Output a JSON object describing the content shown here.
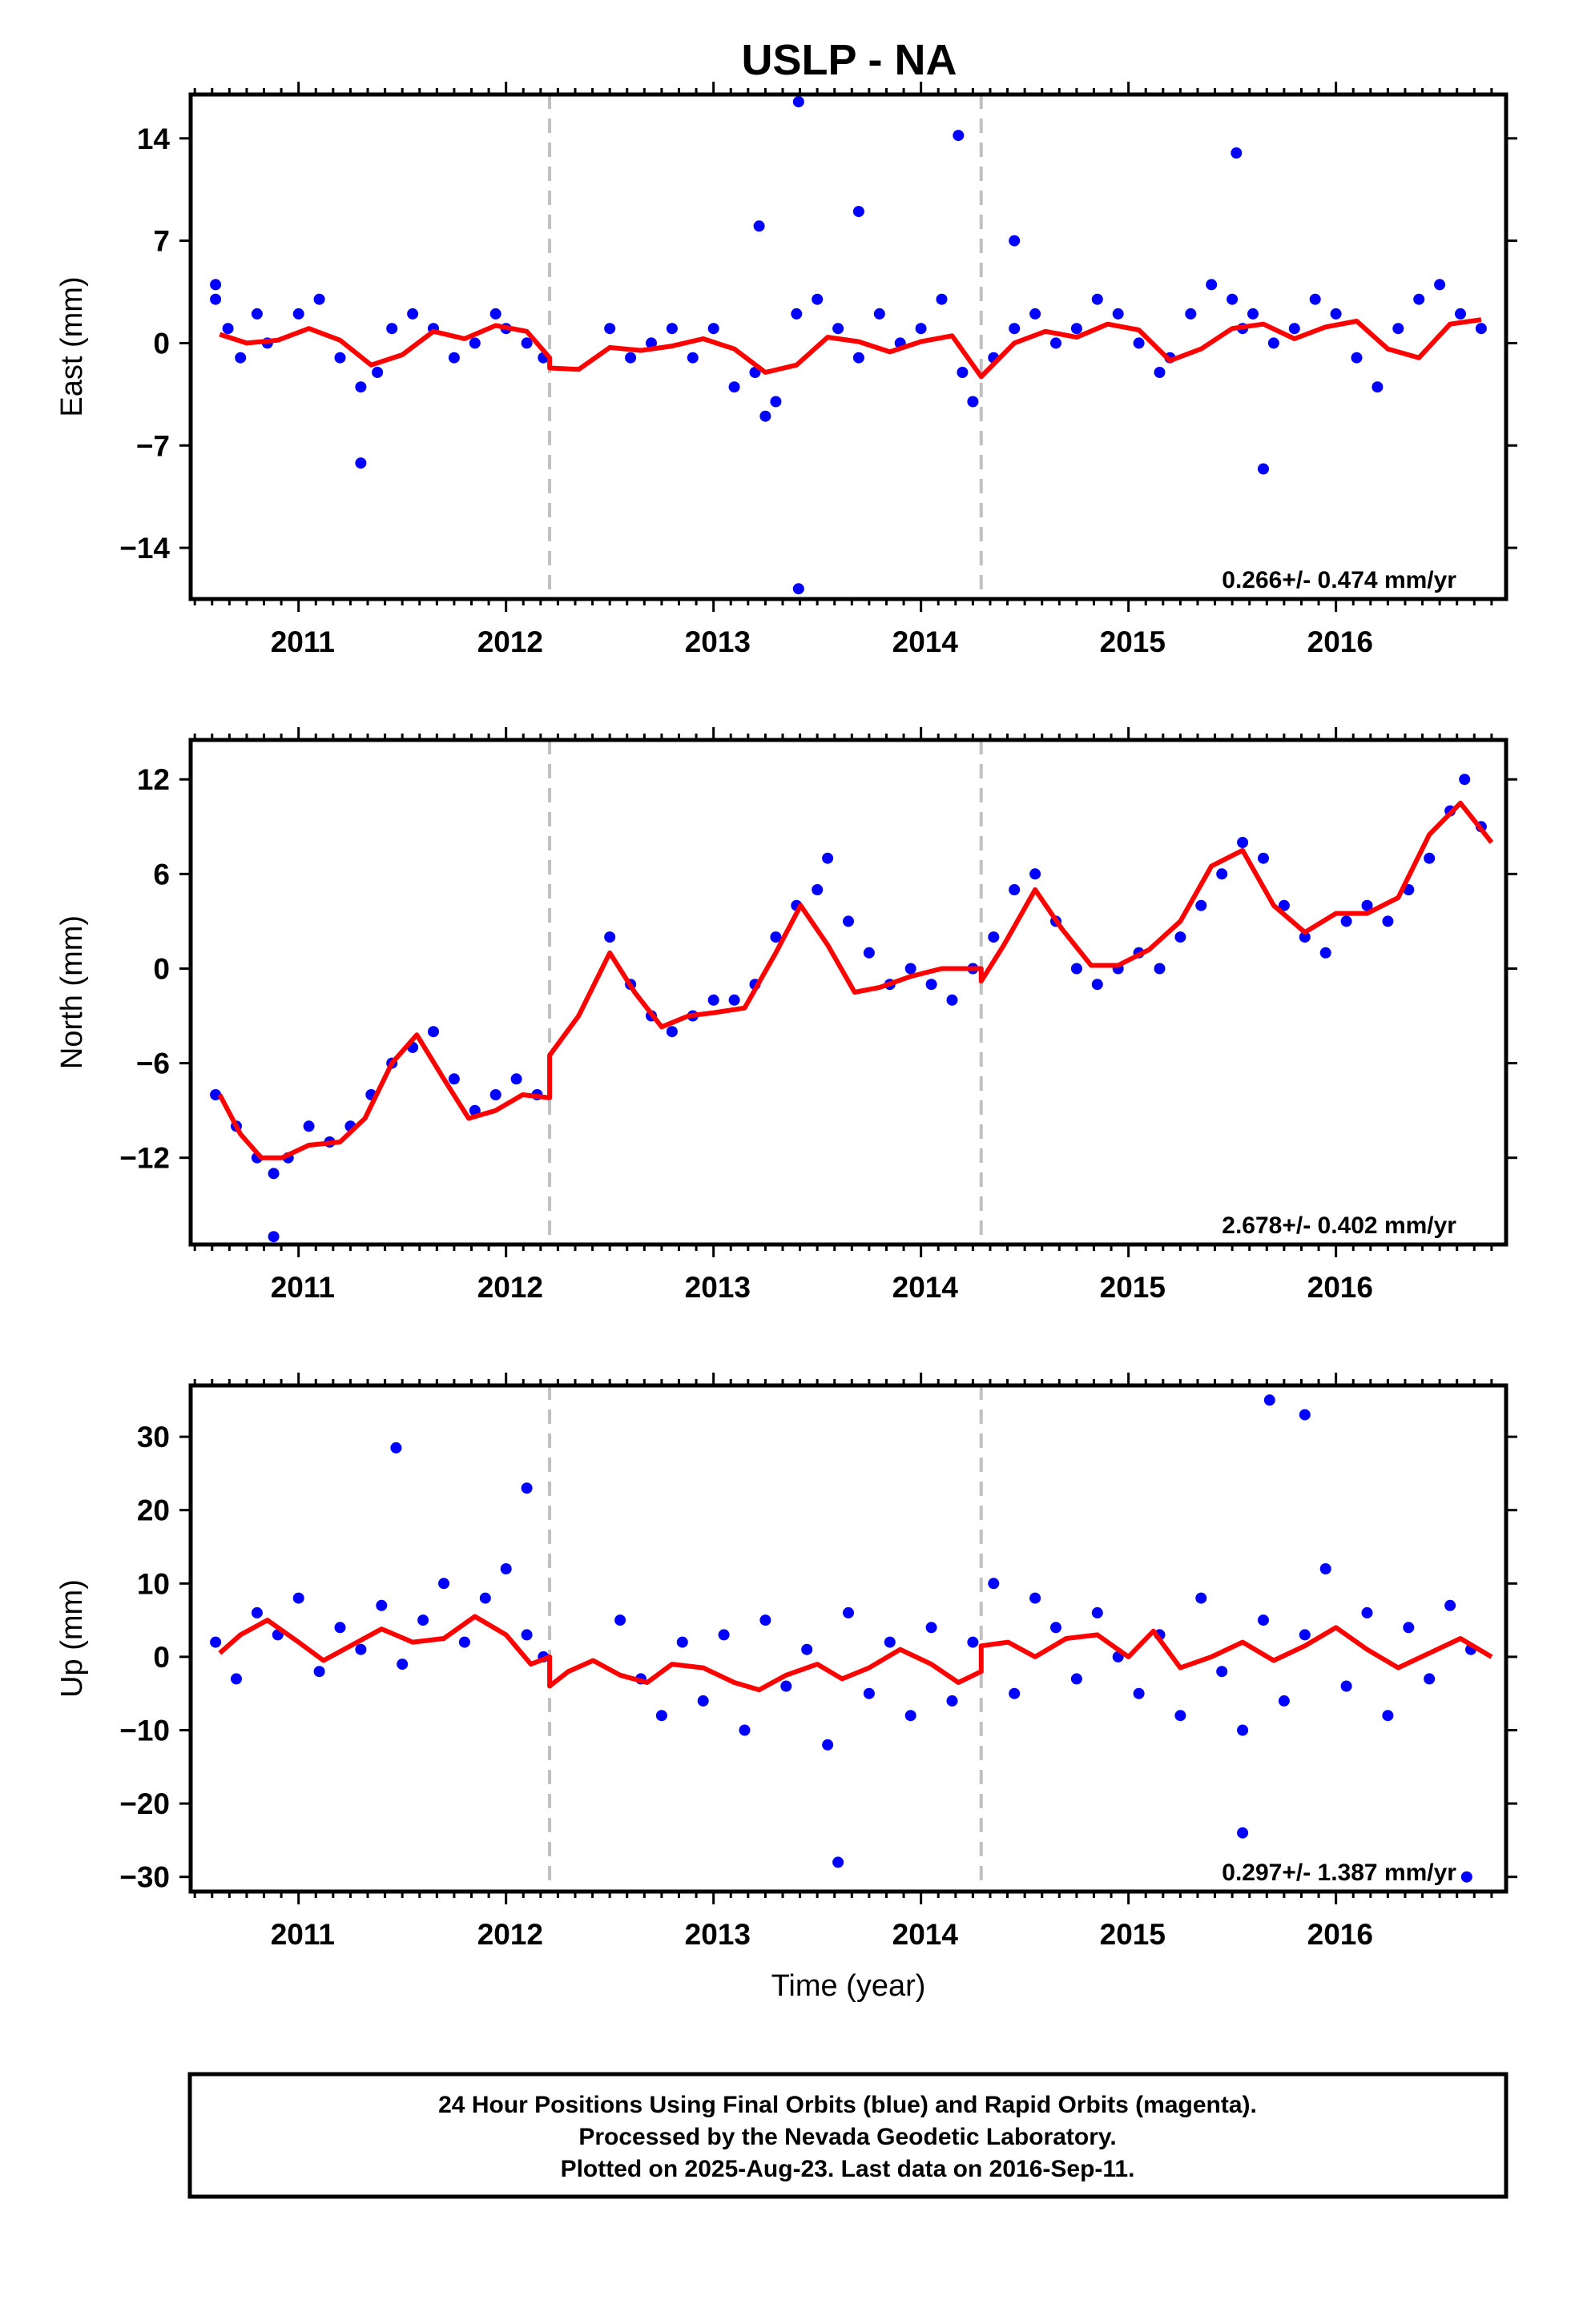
{
  "title": "USLP - NA",
  "colors": {
    "data": "#0000ff",
    "model": "#ff0000",
    "offset": "#c0c0c0",
    "frame": "#000000"
  },
  "footer": {
    "line1": "24 Hour Positions Using Final Orbits (blue) and Rapid Orbits (magenta).",
    "line2": "Processed by the Nevada Geodetic Laboratory.",
    "line3": "Plotted on 2025-Aug-23. Last data on 2016-Sep-11."
  },
  "chart_data": [
    {
      "type": "scatter",
      "id": "east",
      "ylabel": "East (mm)",
      "xlabel": "",
      "xlim": [
        2010.48,
        2016.82
      ],
      "ylim": [
        -17.5,
        17
      ],
      "yticks": [
        14,
        7,
        0,
        -7,
        -14
      ],
      "xticks": [
        2011,
        2012,
        2013,
        2014,
        2015,
        2016
      ],
      "offsets": [
        2012.21,
        2014.29
      ],
      "rate": "0.266+/- 0.474 mm/yr",
      "x": [
        2010.6,
        2010.66,
        2010.72,
        2010.8,
        2010.85,
        2011.0,
        2011.1,
        2011.2,
        2011.3,
        2011.38,
        2011.45,
        2011.55,
        2011.65,
        2011.75,
        2011.85,
        2011.95,
        2012.0,
        2012.1,
        2012.18,
        2012.5,
        2012.6,
        2012.7,
        2012.8,
        2012.9,
        2013.0,
        2013.1,
        2013.2,
        2013.25,
        2013.3,
        2013.4,
        2013.5,
        2013.6,
        2013.7,
        2013.8,
        2013.9,
        2014.0,
        2014.1,
        2014.2,
        2014.25,
        2014.35,
        2014.45,
        2014.55,
        2014.65,
        2014.75,
        2014.85,
        2014.95,
        2015.05,
        2015.15,
        2015.2,
        2015.3,
        2015.4,
        2015.5,
        2015.55,
        2015.6,
        2015.7,
        2015.8,
        2015.9,
        2016.0,
        2016.1,
        2016.2,
        2016.3,
        2016.4,
        2016.5,
        2016.6,
        2016.7,
        2013.41,
        2014.18,
        2015.52,
        2011.3,
        2015.65,
        2013.41,
        2013.22,
        2013.7,
        2014.45,
        2010.6
      ],
      "y": [
        3,
        1,
        -1,
        2,
        0,
        2,
        3,
        -1,
        -3,
        -2,
        1,
        2,
        1,
        -1,
        0,
        2,
        1,
        0,
        -1,
        1,
        -1,
        0,
        1,
        -1,
        1,
        -3,
        -2,
        -5,
        -4,
        2,
        3,
        1,
        -1,
        2,
        0,
        1,
        3,
        -2,
        -4,
        -1,
        1,
        2,
        0,
        1,
        3,
        2,
        0,
        -2,
        -1,
        2,
        4,
        3,
        1,
        2,
        0,
        1,
        3,
        2,
        -1,
        -3,
        1,
        3,
        4,
        2,
        1,
        16.5,
        14.2,
        13,
        -8.2,
        -8.6,
        -16.8,
        8,
        9,
        7,
        4
      ],
      "model_x": [
        2010.62,
        2010.75,
        2010.9,
        2011.05,
        2011.2,
        2011.35,
        2011.5,
        2011.65,
        2011.8,
        2011.95,
        2012.1,
        2012.21,
        2012.21,
        2012.35,
        2012.5,
        2012.65,
        2012.8,
        2012.95,
        2013.1,
        2013.25,
        2013.4,
        2013.55,
        2013.7,
        2013.85,
        2014.0,
        2014.15,
        2014.29,
        2014.29,
        2014.45,
        2014.6,
        2014.75,
        2014.9,
        2015.05,
        2015.2,
        2015.35,
        2015.5,
        2015.65,
        2015.8,
        2015.95,
        2016.1,
        2016.25,
        2016.4,
        2016.55,
        2016.7
      ],
      "model_y": [
        0.6,
        0.0,
        0.2,
        1.0,
        0.2,
        -1.5,
        -0.8,
        0.8,
        0.3,
        1.2,
        0.8,
        -1.0,
        -1.7,
        -1.8,
        -0.3,
        -0.5,
        -0.2,
        0.3,
        -0.4,
        -2.0,
        -1.5,
        0.4,
        0.1,
        -0.6,
        0.1,
        0.5,
        -2.3,
        -2.3,
        0.0,
        0.8,
        0.4,
        1.3,
        0.9,
        -1.2,
        -0.4,
        1.0,
        1.3,
        0.3,
        1.1,
        1.5,
        -0.4,
        -1.0,
        1.3,
        1.6
      ]
    },
    {
      "type": "scatter",
      "id": "north",
      "ylabel": "North (mm)",
      "xlabel": "",
      "xlim": [
        2010.48,
        2016.82
      ],
      "ylim": [
        -17.5,
        14.5
      ],
      "yticks": [
        12,
        6,
        0,
        -6,
        -12
      ],
      "xticks": [
        2011,
        2012,
        2013,
        2014,
        2015,
        2016
      ],
      "offsets": [
        2012.21,
        2014.29
      ],
      "rate": "2.678+/- 0.402 mm/yr",
      "x": [
        2010.6,
        2010.7,
        2010.8,
        2010.88,
        2010.95,
        2011.05,
        2011.15,
        2011.25,
        2011.35,
        2011.45,
        2011.55,
        2011.65,
        2011.75,
        2011.85,
        2011.95,
        2012.05,
        2012.15,
        2012.5,
        2012.6,
        2012.7,
        2012.8,
        2012.9,
        2013.0,
        2013.1,
        2013.2,
        2013.3,
        2013.4,
        2013.5,
        2013.55,
        2013.65,
        2013.75,
        2013.85,
        2013.95,
        2014.05,
        2014.15,
        2014.25,
        2014.35,
        2014.45,
        2014.55,
        2014.65,
        2014.75,
        2014.85,
        2014.95,
        2015.05,
        2015.15,
        2015.25,
        2015.35,
        2015.45,
        2015.55,
        2015.65,
        2015.75,
        2015.85,
        2015.95,
        2016.05,
        2016.15,
        2016.25,
        2016.35,
        2016.45,
        2016.55,
        2016.62,
        2016.7,
        2010.88
      ],
      "y": [
        -8,
        -10,
        -12,
        -13,
        -12,
        -10,
        -11,
        -10,
        -8,
        -6,
        -5,
        -4,
        -7,
        -9,
        -8,
        -7,
        -8,
        2,
        -1,
        -3,
        -4,
        -3,
        -2,
        -2,
        -1,
        2,
        4,
        5,
        7,
        3,
        1,
        -1,
        0,
        -1,
        -2,
        0,
        2,
        5,
        6,
        3,
        0,
        -1,
        0,
        1,
        0,
        2,
        4,
        6,
        8,
        7,
        4,
        2,
        1,
        3,
        4,
        3,
        5,
        7,
        10,
        12,
        9,
        -17
      ],
      "model_x": [
        2010.62,
        2010.72,
        2010.82,
        2010.92,
        2011.05,
        2011.2,
        2011.32,
        2011.45,
        2011.57,
        2011.7,
        2011.82,
        2011.95,
        2012.08,
        2012.21,
        2012.21,
        2012.35,
        2012.5,
        2012.62,
        2012.75,
        2012.88,
        2013.0,
        2013.15,
        2013.3,
        2013.42,
        2013.55,
        2013.68,
        2013.8,
        2013.95,
        2014.1,
        2014.29,
        2014.29,
        2014.4,
        2014.55,
        2014.68,
        2014.82,
        2014.95,
        2015.1,
        2015.25,
        2015.4,
        2015.55,
        2015.7,
        2015.85,
        2016.0,
        2016.15,
        2016.3,
        2016.45,
        2016.6,
        2016.75
      ],
      "model_y": [
        -8.0,
        -10.5,
        -12.0,
        -12.0,
        -11.2,
        -11.0,
        -9.5,
        -6.0,
        -4.2,
        -7.0,
        -9.5,
        -9.0,
        -8.0,
        -8.2,
        -5.5,
        -3.0,
        1.0,
        -1.5,
        -3.7,
        -3.0,
        -2.8,
        -2.5,
        1.0,
        4.0,
        1.5,
        -1.5,
        -1.2,
        -0.5,
        0.0,
        0.0,
        -0.8,
        1.5,
        5.0,
        2.5,
        0.2,
        0.2,
        1.2,
        3.0,
        6.5,
        7.5,
        4.0,
        2.3,
        3.5,
        3.5,
        4.5,
        8.5,
        10.5,
        8.0
      ]
    },
    {
      "type": "scatter",
      "id": "up",
      "ylabel": "Up (mm)",
      "xlabel": "Time (year)",
      "xlim": [
        2010.48,
        2016.82
      ],
      "ylim": [
        -32,
        37
      ],
      "yticks": [
        30,
        20,
        10,
        0,
        -10,
        -20,
        -30
      ],
      "xticks": [
        2011,
        2012,
        2013,
        2014,
        2015,
        2016
      ],
      "offsets": [
        2012.21,
        2014.29
      ],
      "rate": "0.297+/- 1.387 mm/yr",
      "x": [
        2010.6,
        2010.7,
        2010.8,
        2010.9,
        2011.0,
        2011.1,
        2011.2,
        2011.3,
        2011.4,
        2011.5,
        2011.6,
        2011.7,
        2011.8,
        2011.9,
        2012.0,
        2012.1,
        2012.18,
        2012.55,
        2012.65,
        2012.75,
        2012.85,
        2012.95,
        2013.05,
        2013.15,
        2013.25,
        2013.35,
        2013.45,
        2013.55,
        2013.65,
        2013.75,
        2013.85,
        2013.95,
        2014.05,
        2014.15,
        2014.25,
        2014.35,
        2014.45,
        2014.55,
        2014.65,
        2014.75,
        2014.85,
        2014.95,
        2015.05,
        2015.15,
        2015.25,
        2015.35,
        2015.45,
        2015.55,
        2015.65,
        2015.75,
        2015.85,
        2015.95,
        2016.05,
        2016.15,
        2016.25,
        2016.35,
        2016.45,
        2016.55,
        2016.65,
        2015.68,
        2015.85,
        2011.47,
        2012.1,
        2013.6,
        2015.55,
        2016.63
      ],
      "y": [
        2,
        -3,
        6,
        3,
        8,
        -2,
        4,
        1,
        7,
        -1,
        5,
        10,
        2,
        8,
        12,
        3,
        0,
        5,
        -3,
        -8,
        2,
        -6,
        3,
        -10,
        5,
        -4,
        1,
        -12,
        6,
        -5,
        2,
        -8,
        4,
        -6,
        2,
        10,
        -5,
        8,
        4,
        -3,
        6,
        0,
        -5,
        3,
        -8,
        8,
        -2,
        -10,
        5,
        -6,
        3,
        12,
        -4,
        6,
        -8,
        4,
        -3,
        7,
        1,
        35,
        33,
        28.5,
        23,
        -28,
        -24,
        -30
      ],
      "model_x": [
        2010.62,
        2010.72,
        2010.85,
        2011.0,
        2011.12,
        2011.25,
        2011.4,
        2011.55,
        2011.7,
        2011.85,
        2012.0,
        2012.12,
        2012.21,
        2012.21,
        2012.3,
        2012.42,
        2012.55,
        2012.68,
        2012.8,
        2012.95,
        2013.1,
        2013.22,
        2013.35,
        2013.5,
        2013.62,
        2013.75,
        2013.9,
        2014.05,
        2014.18,
        2014.29,
        2014.29,
        2014.42,
        2014.55,
        2014.7,
        2014.85,
        2015.0,
        2015.12,
        2015.25,
        2015.4,
        2015.55,
        2015.7,
        2015.85,
        2016.0,
        2016.15,
        2016.3,
        2016.45,
        2016.6,
        2016.75
      ],
      "model_y": [
        0.5,
        3.0,
        5.0,
        2.0,
        -0.5,
        1.5,
        3.8,
        2.0,
        2.5,
        5.5,
        3.0,
        -1.0,
        0.0,
        -4.0,
        -2.0,
        -0.5,
        -2.5,
        -3.5,
        -1.0,
        -1.5,
        -3.5,
        -4.5,
        -2.5,
        -1.0,
        -3.0,
        -1.5,
        1.0,
        -1.0,
        -3.5,
        -2.0,
        1.5,
        2.0,
        0.0,
        2.5,
        3.0,
        0.0,
        3.5,
        -1.5,
        0.0,
        2.0,
        -0.5,
        1.5,
        4.0,
        1.0,
        -1.5,
        0.5,
        2.5,
        0.0
      ]
    }
  ]
}
